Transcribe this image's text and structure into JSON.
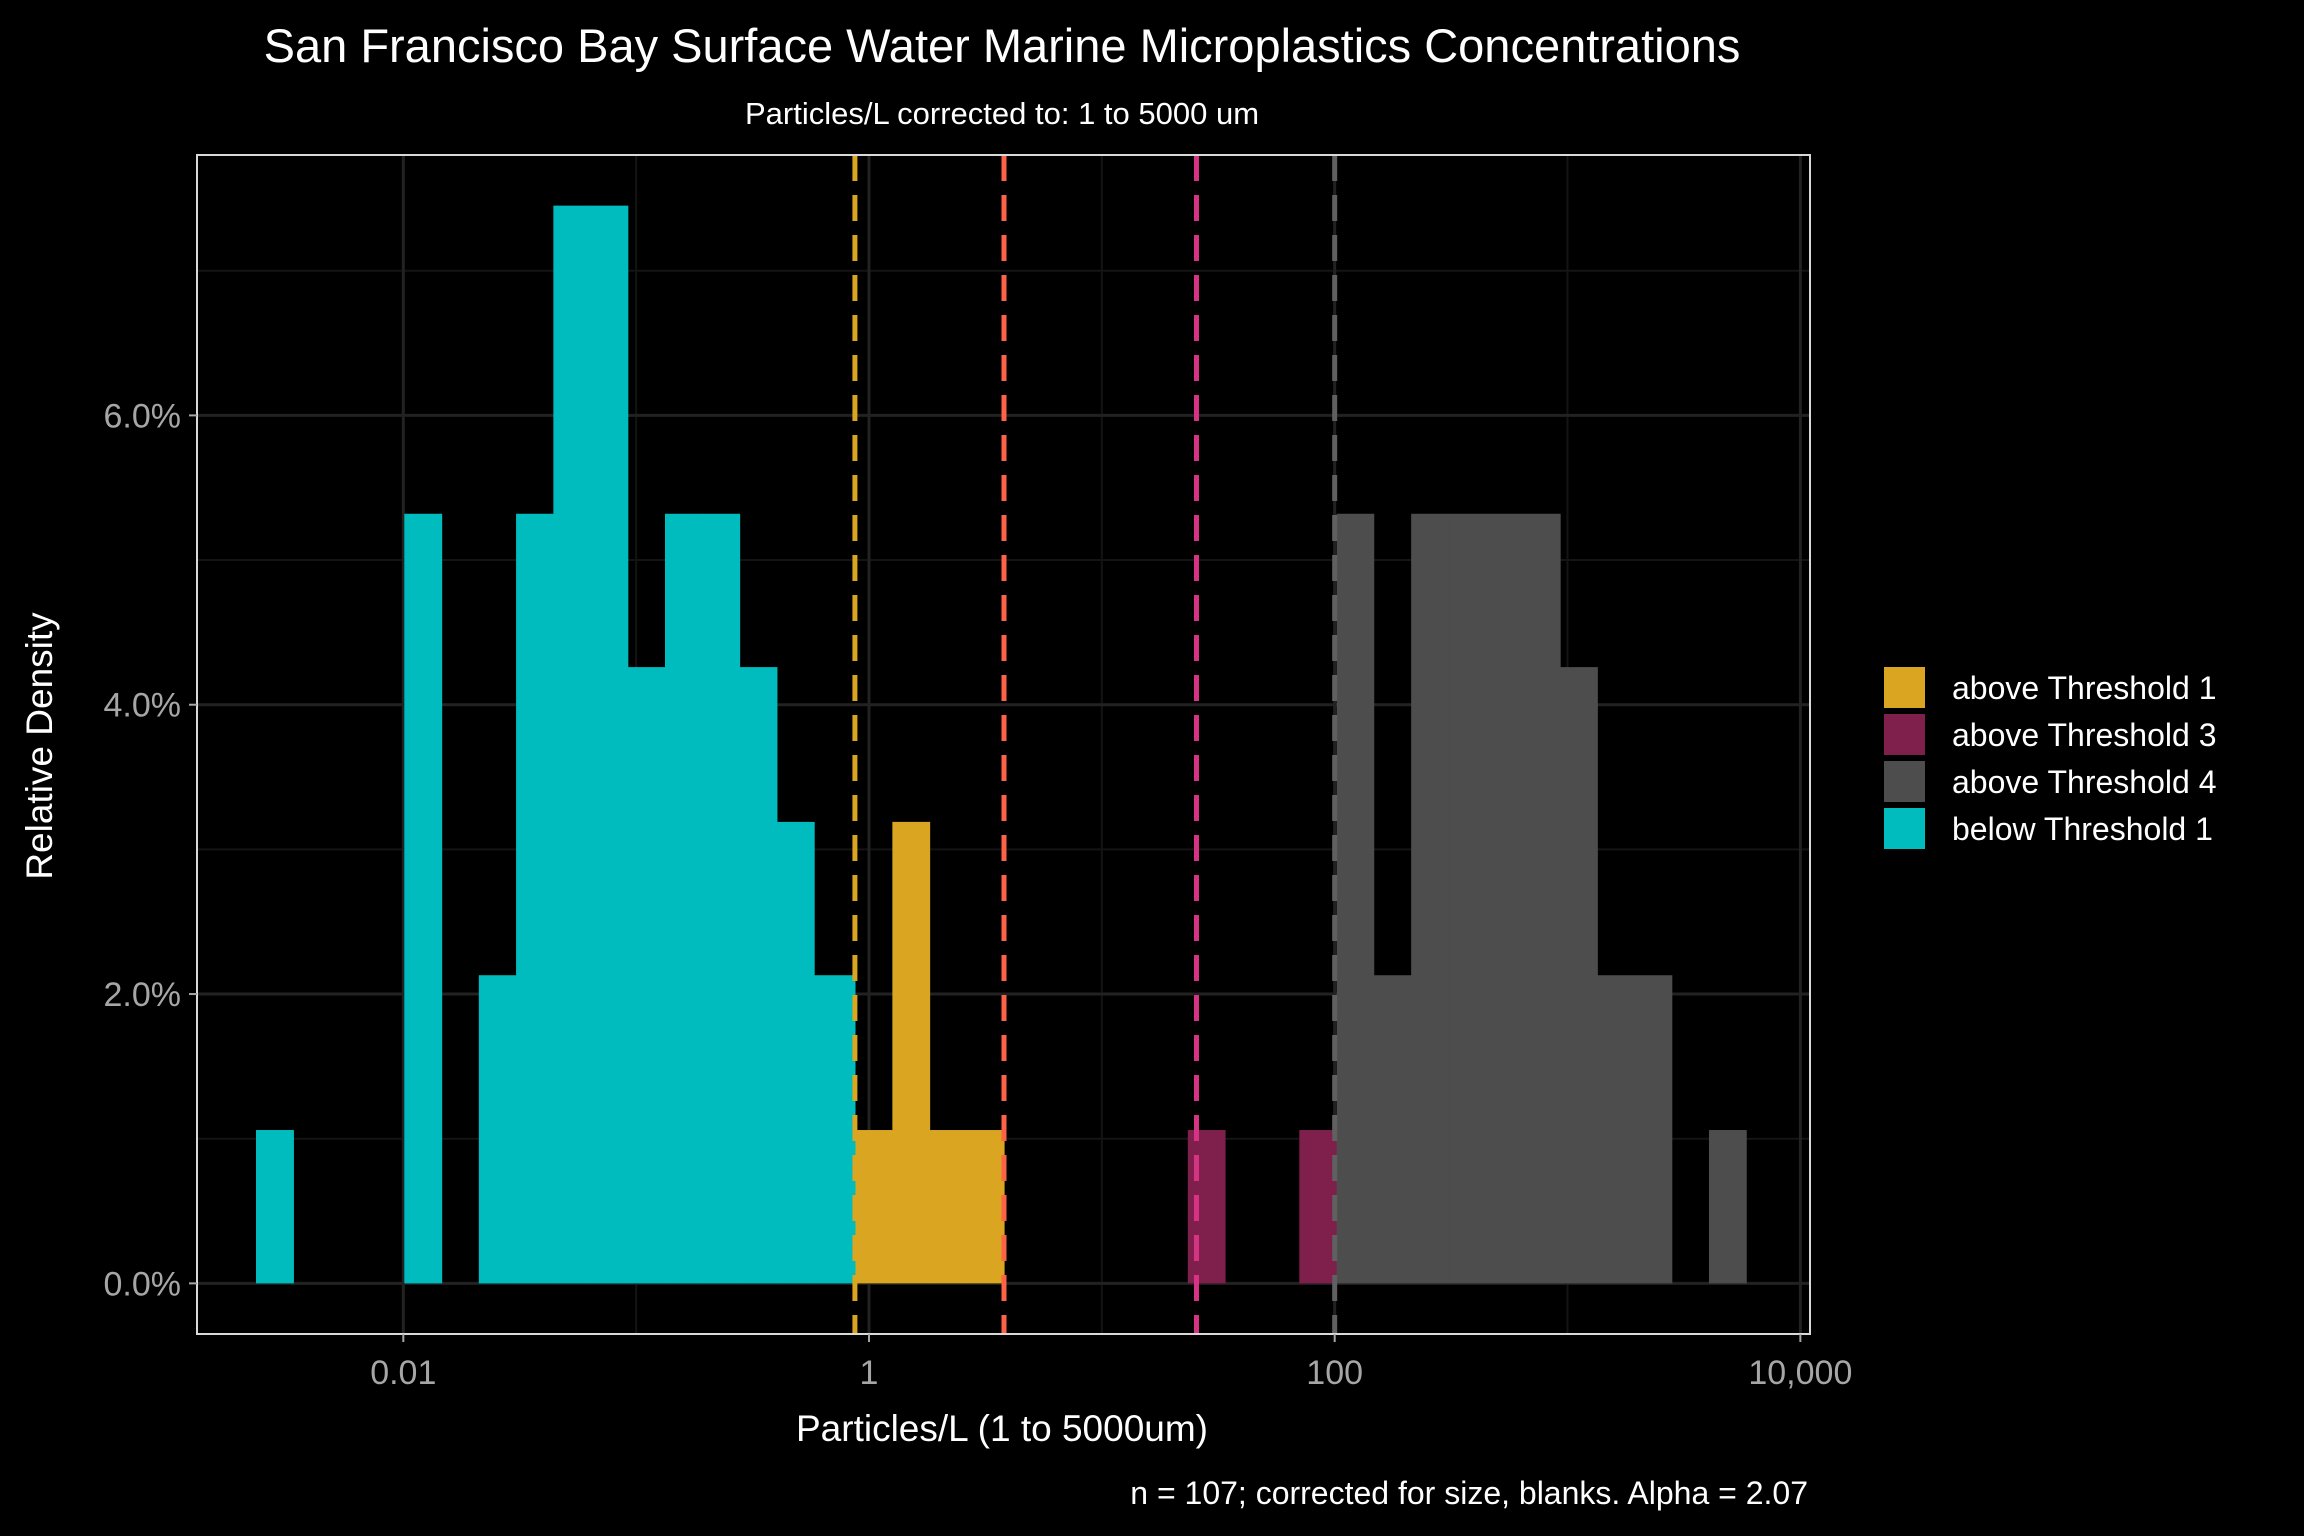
{
  "chart_data": {
    "type": "bar",
    "title": "San Francisco Bay Surface Water Marine Microplastics Concentrations",
    "subtitle": "Particles/L corrected to: 1 to 5000 um",
    "xlabel": "Particles/L (1 to 5000um)",
    "ylabel": "Relative Density",
    "caption": "n = 107; corrected for size, blanks. Alpha =  2.07",
    "x_scale": "log10",
    "xlim": [
      0.0013,
      11000
    ],
    "ylim": [
      -0.35,
      7.8
    ],
    "x_ticks": [
      {
        "value": 0.01,
        "label": "0.01"
      },
      {
        "value": 1,
        "label": "1"
      },
      {
        "value": 100,
        "label": "100"
      },
      {
        "value": 10000,
        "label": "10,000"
      }
    ],
    "y_ticks": [
      {
        "value": 0,
        "label": "0.0%"
      },
      {
        "value": 2,
        "label": "2.0%"
      },
      {
        "value": 4,
        "label": "4.0%"
      },
      {
        "value": 6,
        "label": "6.0%"
      }
    ],
    "grid": true,
    "legend_position": "right",
    "bin_width_log10": 0.16,
    "series": [
      {
        "name": "above Threshold 1",
        "color": "#DAA520",
        "bins": [
          {
            "x0": 0.87,
            "x1": 1.26,
            "y": 1.06
          },
          {
            "x0": 1.26,
            "x1": 1.82,
            "y": 3.19
          },
          {
            "x0": 1.82,
            "x1": 2.63,
            "y": 1.06
          },
          {
            "x0": 2.63,
            "x1": 3.8,
            "y": 1.06
          }
        ]
      },
      {
        "name": "above Threshold 3",
        "color": "#7F1F4C",
        "bins": [
          {
            "x0": 23.4,
            "x1": 33.8,
            "y": 1.06
          },
          {
            "x0": 70.5,
            "x1": 102,
            "y": 1.06
          }
        ]
      },
      {
        "name": "above Threshold 4",
        "color": "#4D4D4D",
        "bins": [
          {
            "x0": 102,
            "x1": 147,
            "y": 5.32
          },
          {
            "x0": 147,
            "x1": 213,
            "y": 2.13
          },
          {
            "x0": 213,
            "x1": 308,
            "y": 5.32
          },
          {
            "x0": 308,
            "x1": 445,
            "y": 5.32
          },
          {
            "x0": 445,
            "x1": 643,
            "y": 5.32
          },
          {
            "x0": 643,
            "x1": 929,
            "y": 5.32
          },
          {
            "x0": 929,
            "x1": 1342,
            "y": 4.26
          },
          {
            "x0": 1342,
            "x1": 1939,
            "y": 2.13
          },
          {
            "x0": 1939,
            "x1": 2802,
            "y": 2.13
          },
          {
            "x0": 4050,
            "x1": 5850,
            "y": 1.06
          }
        ]
      },
      {
        "name": "below Threshold 1",
        "color": "#00BCBF",
        "bins": [
          {
            "x0": 0.00233,
            "x1": 0.00337,
            "y": 1.06
          },
          {
            "x0": 0.0101,
            "x1": 0.0146,
            "y": 5.32
          },
          {
            "x0": 0.0211,
            "x1": 0.0305,
            "y": 2.13
          },
          {
            "x0": 0.0305,
            "x1": 0.0441,
            "y": 5.32
          },
          {
            "x0": 0.0441,
            "x1": 0.0637,
            "y": 7.45
          },
          {
            "x0": 0.0637,
            "x1": 0.092,
            "y": 7.45
          },
          {
            "x0": 0.092,
            "x1": 0.133,
            "y": 4.26
          },
          {
            "x0": 0.133,
            "x1": 0.192,
            "y": 5.32
          },
          {
            "x0": 0.192,
            "x1": 0.278,
            "y": 5.32
          },
          {
            "x0": 0.278,
            "x1": 0.402,
            "y": 4.26
          },
          {
            "x0": 0.402,
            "x1": 0.581,
            "y": 3.19
          },
          {
            "x0": 0.581,
            "x1": 0.839,
            "y": 2.13
          },
          {
            "x0": 0.839,
            "x1": 0.87,
            "y": 2.13
          }
        ]
      }
    ],
    "thresholds": [
      {
        "value": 0.87,
        "color": "#DAA520"
      },
      {
        "value": 3.8,
        "color": "#FF6347"
      },
      {
        "value": 25.5,
        "color": "#D63384"
      },
      {
        "value": 100,
        "color": "#606060"
      }
    ]
  }
}
